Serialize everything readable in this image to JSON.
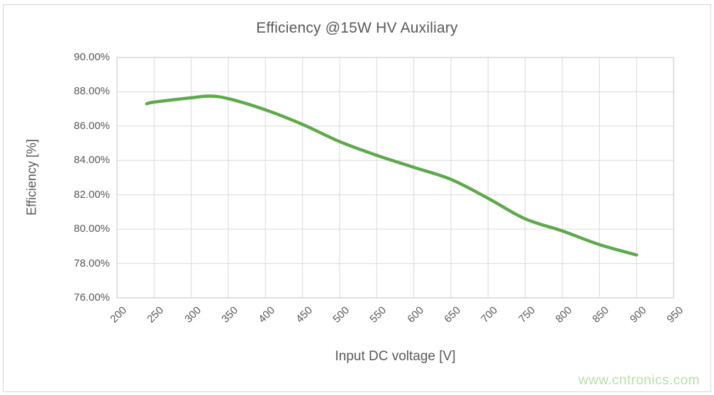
{
  "page": {
    "watermark": "www.cntronics.com"
  },
  "chart_data": {
    "type": "line",
    "title": "Efficiency @15W HV Auxiliary",
    "xlabel": "Input DC voltage [V]",
    "ylabel": "Efficiency [%]",
    "xlim": [
      200,
      950
    ],
    "ylim": [
      76,
      90
    ],
    "x_ticks": [
      200,
      250,
      300,
      350,
      400,
      450,
      500,
      550,
      600,
      650,
      700,
      750,
      800,
      850,
      900,
      950
    ],
    "y_ticks": [
      76,
      78,
      80,
      82,
      84,
      86,
      88,
      90
    ],
    "y_tick_labels": [
      "76.00%",
      "78.00%",
      "80.00%",
      "82.00%",
      "84.00%",
      "86.00%",
      "88.00%",
      "90.00%"
    ],
    "grid": true,
    "legend_position": "none",
    "series": [
      {
        "name": "Efficiency",
        "x": [
          240,
          250,
          300,
          325,
          350,
          400,
          450,
          500,
          550,
          600,
          650,
          700,
          750,
          800,
          850,
          900
        ],
        "y": [
          87.3,
          87.4,
          87.65,
          87.75,
          87.6,
          86.95,
          86.1,
          85.1,
          84.3,
          83.6,
          82.9,
          81.8,
          80.6,
          79.9,
          79.1,
          78.5
        ]
      }
    ],
    "colors": {
      "line": "#5fa94d",
      "grid": "#d9d9d9",
      "plot_border": "#c6c6c6",
      "axis_text": "#595959",
      "title_text": "#595959",
      "watermark_text": "#b7e0a5"
    }
  }
}
